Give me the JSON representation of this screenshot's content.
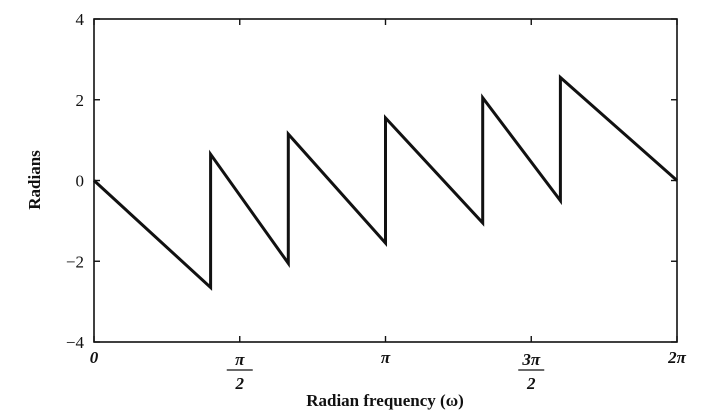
{
  "chart_data": {
    "type": "line",
    "title": "",
    "xlabel": "Radian frequency (ω)",
    "ylabel": "Radians",
    "xlim": [
      0,
      6.283185307
    ],
    "ylim": [
      -4,
      4
    ],
    "grid": false,
    "y_ticks": [
      {
        "value": 4,
        "label": "4"
      },
      {
        "value": 2,
        "label": "2"
      },
      {
        "value": 0,
        "label": "0"
      },
      {
        "value": -2,
        "label": "−2"
      },
      {
        "value": -4,
        "label": "−4"
      }
    ],
    "x_ticks": [
      {
        "value": 0,
        "label": "0",
        "kind": "plain"
      },
      {
        "value": 1.570796,
        "num": "π",
        "den": "2",
        "kind": "fraction"
      },
      {
        "value": 3.141593,
        "label": "π",
        "kind": "plain"
      },
      {
        "value": 4.712389,
        "num": "3π",
        "den": "2",
        "kind": "fraction"
      },
      {
        "value": 6.283185,
        "label": "2π",
        "kind": "plain"
      }
    ],
    "series": [
      {
        "points": [
          [
            0.0,
            0.0
          ],
          [
            1.257,
            -2.65
          ],
          [
            1.257,
            0.65
          ],
          [
            2.094,
            -2.05
          ],
          [
            2.094,
            1.15
          ],
          [
            3.142,
            -1.55
          ],
          [
            3.142,
            1.55
          ],
          [
            4.189,
            -1.05
          ],
          [
            4.189,
            2.05
          ],
          [
            5.027,
            -0.5
          ],
          [
            5.027,
            2.55
          ],
          [
            6.283,
            0.0
          ]
        ]
      }
    ]
  }
}
